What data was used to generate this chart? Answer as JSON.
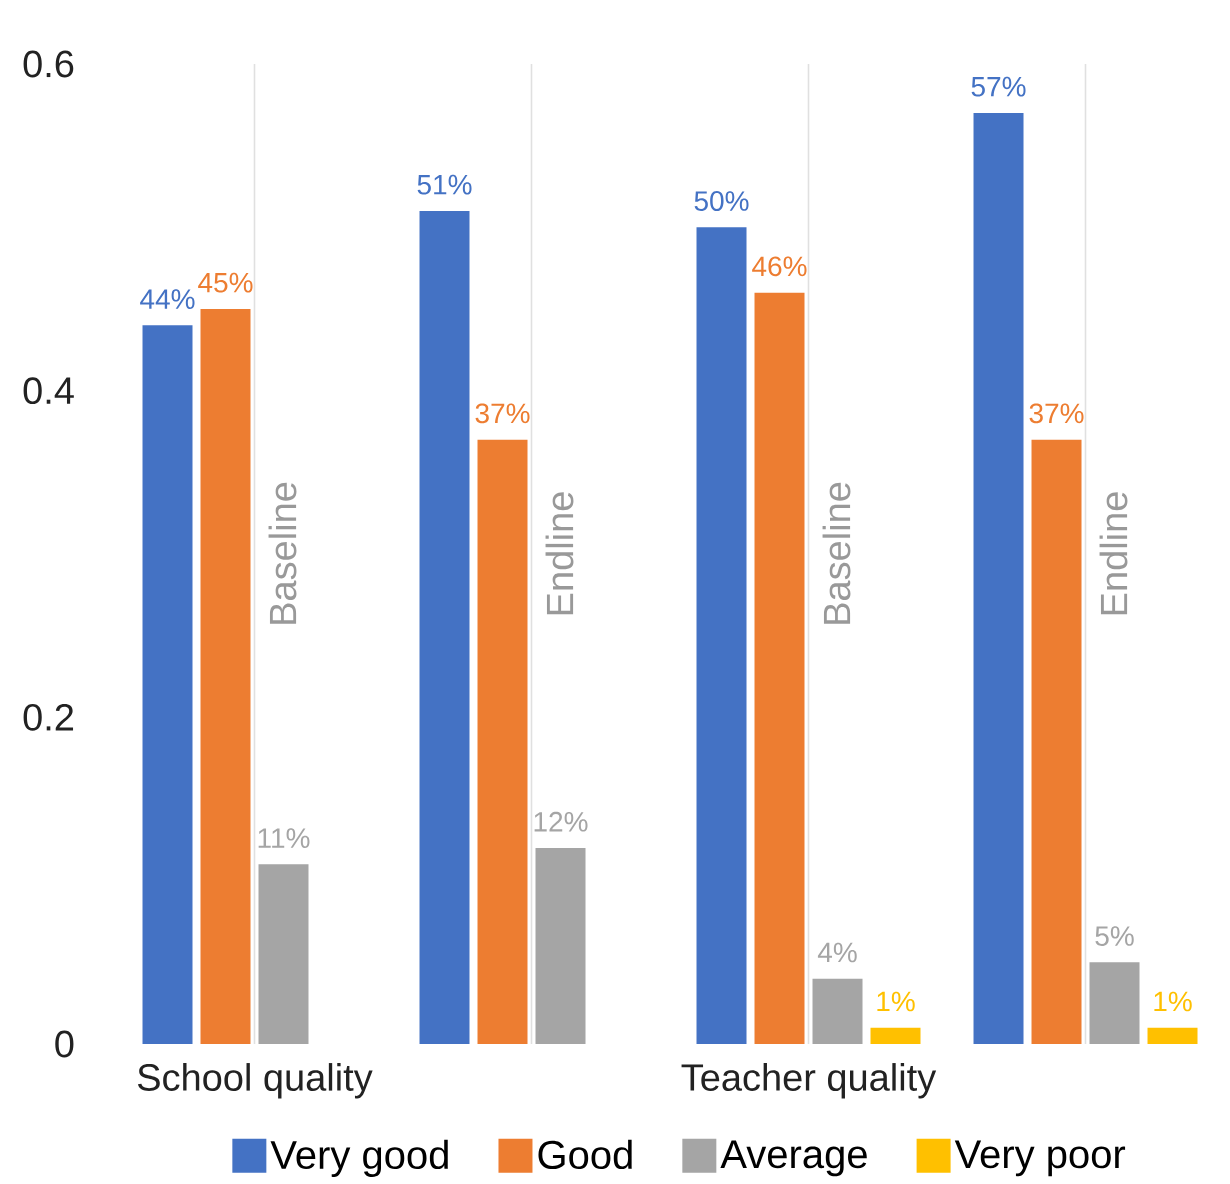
{
  "chart_data": {
    "type": "bar",
    "categories": [
      "School quality",
      null,
      "Teacher quality",
      null
    ],
    "series": [
      {
        "name": "Very good",
        "color": "#4472c4",
        "values": [
          0.44,
          0.51,
          0.5,
          0.57
        ],
        "value_labels": [
          "44%",
          "51%",
          "50%",
          "57%"
        ]
      },
      {
        "name": "Good",
        "color": "#ed7d31",
        "values": [
          0.45,
          0.37,
          0.46,
          0.37
        ],
        "value_labels": [
          "45%",
          "37%",
          "46%",
          "37%"
        ]
      },
      {
        "name": "Average",
        "color": "#a5a5a5",
        "values": [
          0.11,
          0.12,
          0.04,
          0.05
        ],
        "value_labels": [
          "11%",
          "12%",
          "4%",
          "5%"
        ]
      },
      {
        "name": "Very poor",
        "color": "#ffc000",
        "values": [
          null,
          null,
          0.01,
          0.01
        ],
        "value_labels": [
          null,
          null,
          "1%",
          "1%"
        ]
      }
    ],
    "ylim": [
      0,
      0.6
    ],
    "yticks": [
      0,
      0.2,
      0.4,
      0.6
    ],
    "grid": "x",
    "legend": "bottom",
    "annotations": [
      "Baseline",
      "Endline",
      "Baseline",
      "Endline"
    ]
  }
}
